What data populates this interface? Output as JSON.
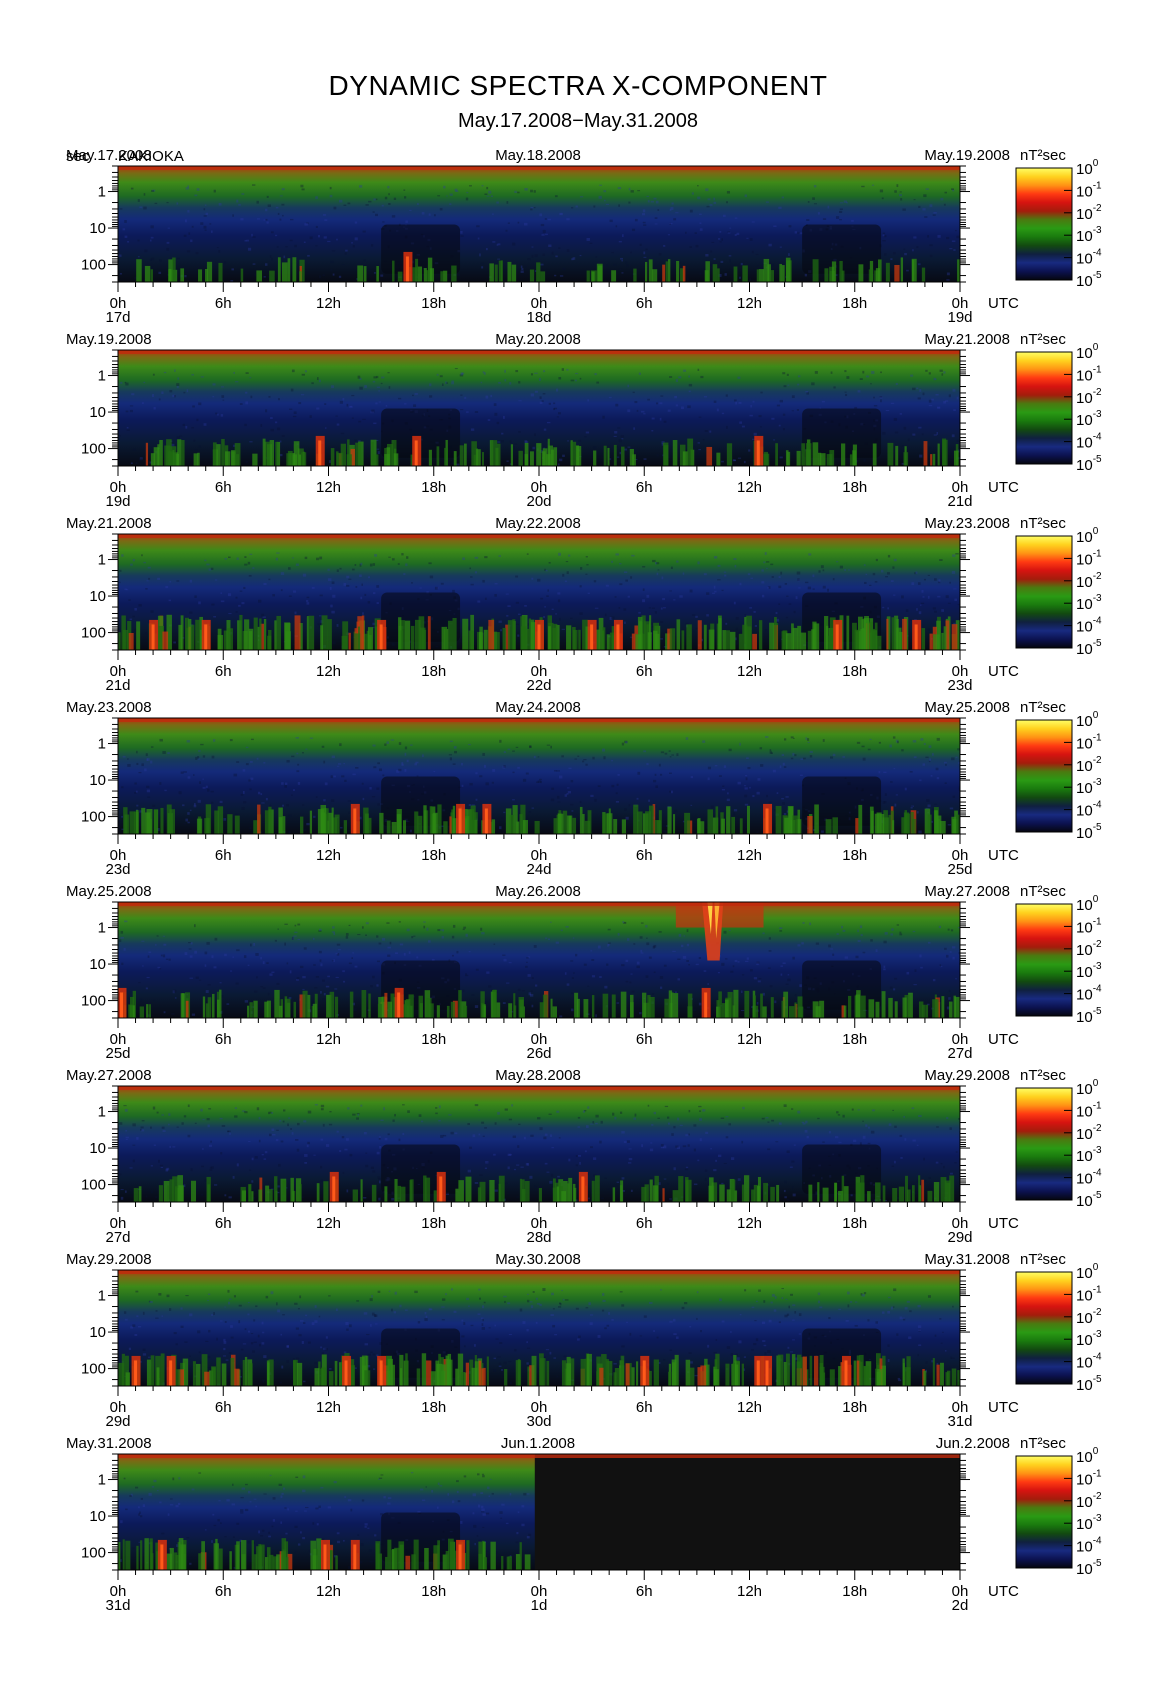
{
  "title": "DYNAMIC SPECTRA X-COMPONENT",
  "subtitle": "May.17.2008−May.31.2008",
  "station_unit": "sec",
  "station": "KAKIOKA",
  "colorbar_unit": "nT²sec",
  "colorbar_ticks": [
    {
      "base": "10",
      "exp": "0"
    },
    {
      "base": "10",
      "exp": "-1"
    },
    {
      "base": "10",
      "exp": "-2"
    },
    {
      "base": "10",
      "exp": "-3"
    },
    {
      "base": "10",
      "exp": "-4"
    },
    {
      "base": "10",
      "exp": "-5"
    }
  ],
  "colorbar_colors": [
    "#ffff66",
    "#ffd21e",
    "#ff9414",
    "#ff3a12",
    "#d61410",
    "#a41c0c",
    "#4a7a10",
    "#2a9a14",
    "#1a7a0e",
    "#124a10",
    "#102040",
    "#182a80",
    "#0c1250",
    "#05060f"
  ],
  "y_ticks": [
    "1",
    "10",
    "100"
  ],
  "x_ticks": [
    "0h",
    "6h",
    "12h",
    "18h",
    "0h",
    "6h",
    "12h",
    "18h",
    "0h"
  ],
  "utc_label": "UTC",
  "chart_data": {
    "type": "heatmap",
    "description_axes": {
      "x": "time (UTC hours over 2 days per panel)",
      "y": "period (sec), log scale, approx 0.2-300",
      "color": "power spectral density nT^2 sec, log scale 1e-5 to 1e0"
    },
    "ylim": [
      0.2,
      300
    ],
    "color_range": [
      1e-05,
      1
    ],
    "panels": [
      {
        "date_left": "May.17.2008",
        "date_mid": "May.18.2008",
        "date_right": "May.19.2008",
        "day_labels": [
          "17d",
          "18d",
          "19d"
        ],
        "data_until_fraction": 1.0,
        "burst_level": 0.15,
        "red_events_hours": [
          16.5
        ]
      },
      {
        "date_left": "May.19.2008",
        "date_mid": "May.20.2008",
        "date_right": "May.21.2008",
        "day_labels": [
          "19d",
          "20d",
          "21d"
        ],
        "data_until_fraction": 1.0,
        "burst_level": 0.35,
        "red_events_hours": [
          11.5,
          17.0,
          36.5
        ]
      },
      {
        "date_left": "May.21.2008",
        "date_mid": "May.22.2008",
        "date_right": "May.23.2008",
        "day_labels": [
          "21d",
          "22d",
          "23d"
        ],
        "data_until_fraction": 1.0,
        "burst_level": 0.75,
        "red_events_hours": [
          2,
          5,
          15,
          24,
          27,
          28.5,
          41,
          45.5
        ]
      },
      {
        "date_left": "May.23.2008",
        "date_mid": "May.24.2008",
        "date_right": "May.25.2008",
        "day_labels": [
          "23d",
          "24d",
          "25d"
        ],
        "data_until_fraction": 1.0,
        "burst_level": 0.5,
        "red_events_hours": [
          13.5,
          19.5,
          21,
          37
        ]
      },
      {
        "date_left": "May.25.2008",
        "date_mid": "May.26.2008",
        "date_right": "May.27.2008",
        "day_labels": [
          "25d",
          "26d",
          "27d"
        ],
        "data_until_fraction": 1.0,
        "burst_level": 0.4,
        "red_events_hours": [
          0.2,
          16,
          33.5
        ],
        "storm_hours": [
          33.3,
          34.5
        ]
      },
      {
        "date_left": "May.27.2008",
        "date_mid": "May.28.2008",
        "date_right": "May.29.2008",
        "day_labels": [
          "27d",
          "28d",
          "29d"
        ],
        "data_until_fraction": 1.0,
        "burst_level": 0.3,
        "red_events_hours": [
          12.3,
          18.4,
          26.5
        ]
      },
      {
        "date_left": "May.29.2008",
        "date_mid": "May.30.2008",
        "date_right": "May.31.2008",
        "day_labels": [
          "29d",
          "30d",
          "31d"
        ],
        "data_until_fraction": 1.0,
        "burst_level": 0.65,
        "red_events_hours": [
          1,
          3,
          13,
          15,
          30,
          36.5,
          37,
          41.5
        ]
      },
      {
        "date_left": "May.31.2008",
        "date_mid": "Jun.1.2008",
        "date_right": "Jun.2.2008",
        "day_labels": [
          "31d",
          "1d",
          "2d"
        ],
        "data_until_fraction": 0.495,
        "burst_level": 0.6,
        "red_events_hours": [
          2.5,
          11.8,
          13.5,
          19.5
        ]
      }
    ]
  }
}
